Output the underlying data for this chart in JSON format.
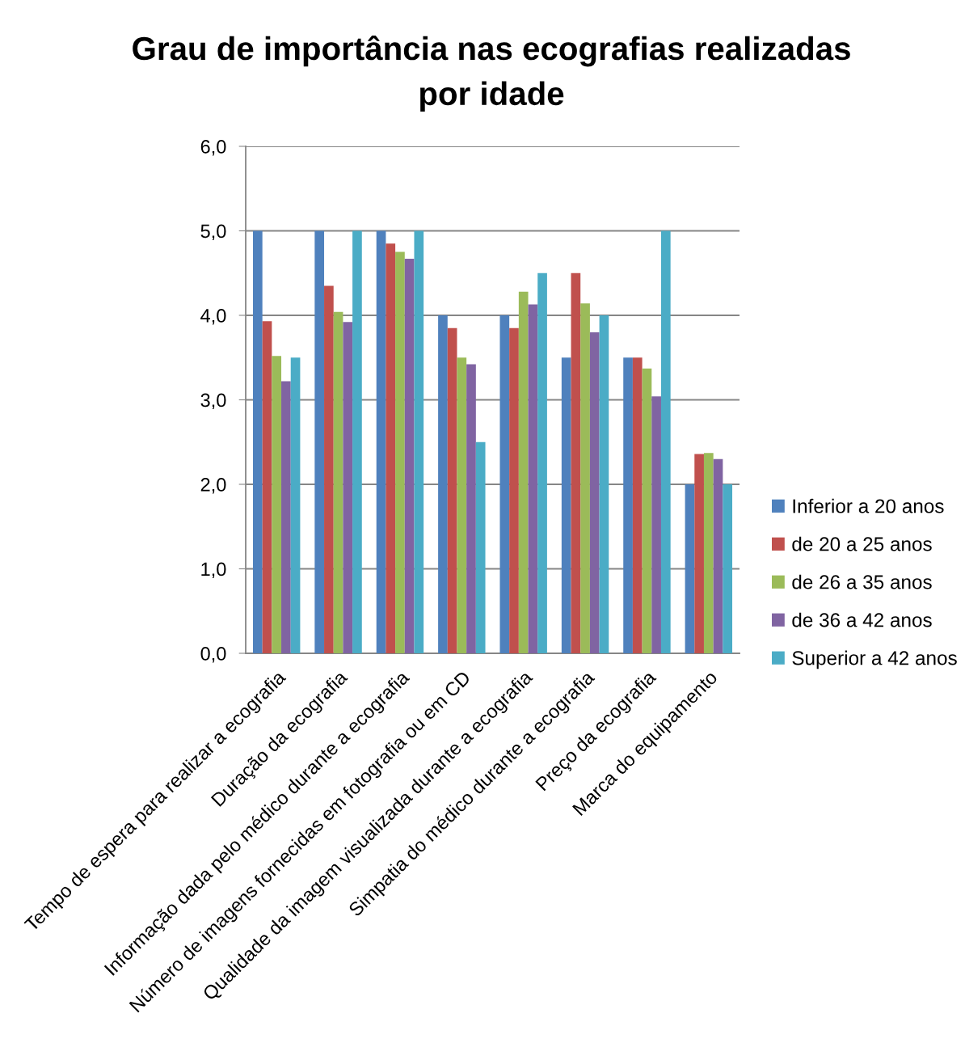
{
  "chart_data": {
    "type": "bar",
    "title": "Grau de importância nas ecografias realizadas\npor idade",
    "categories": [
      "Tempo de espera para realizar a ecografia",
      "Duração da ecografia",
      "Informação dada pelo médico durante a ecografia",
      "Número de imagens fornecidas em fotografia ou em CD",
      "Qualidade da imagem visualizada durante a ecografia",
      "Simpatia do médico durante a ecografia",
      "Preço da ecografia",
      "Marca do equipamento"
    ],
    "series": [
      {
        "name": "Inferior a 20 anos",
        "color": "#4f81bd",
        "values": [
          5.0,
          5.0,
          5.0,
          4.0,
          4.0,
          3.5,
          3.5,
          2.0
        ]
      },
      {
        "name": "de 20 a 25 anos",
        "color": "#c0504d",
        "values": [
          3.93,
          4.35,
          4.85,
          3.85,
          3.85,
          4.5,
          3.5,
          2.36
        ]
      },
      {
        "name": "de 26 a 35 anos",
        "color": "#9bbb59",
        "values": [
          3.52,
          4.04,
          4.75,
          3.5,
          4.28,
          4.14,
          3.37,
          2.37
        ]
      },
      {
        "name": "de 36 a 42 anos",
        "color": "#8064a2",
        "values": [
          3.22,
          3.92,
          4.67,
          3.42,
          4.13,
          3.8,
          3.04,
          2.3
        ]
      },
      {
        "name": "Superior a 42 anos",
        "color": "#4bacc6",
        "values": [
          3.5,
          5.0,
          5.0,
          2.5,
          4.5,
          4.0,
          5.0,
          2.0
        ]
      }
    ],
    "ylim": [
      0,
      6
    ],
    "yticks": [
      {
        "value": 0,
        "label": "0,0"
      },
      {
        "value": 1,
        "label": "1,0"
      },
      {
        "value": 2,
        "label": "2,0"
      },
      {
        "value": 3,
        "label": "3,0"
      },
      {
        "value": 4,
        "label": "4,0"
      },
      {
        "value": 5,
        "label": "5,0"
      },
      {
        "value": 6,
        "label": "6,0"
      }
    ],
    "grid": "y",
    "legend": "right"
  }
}
